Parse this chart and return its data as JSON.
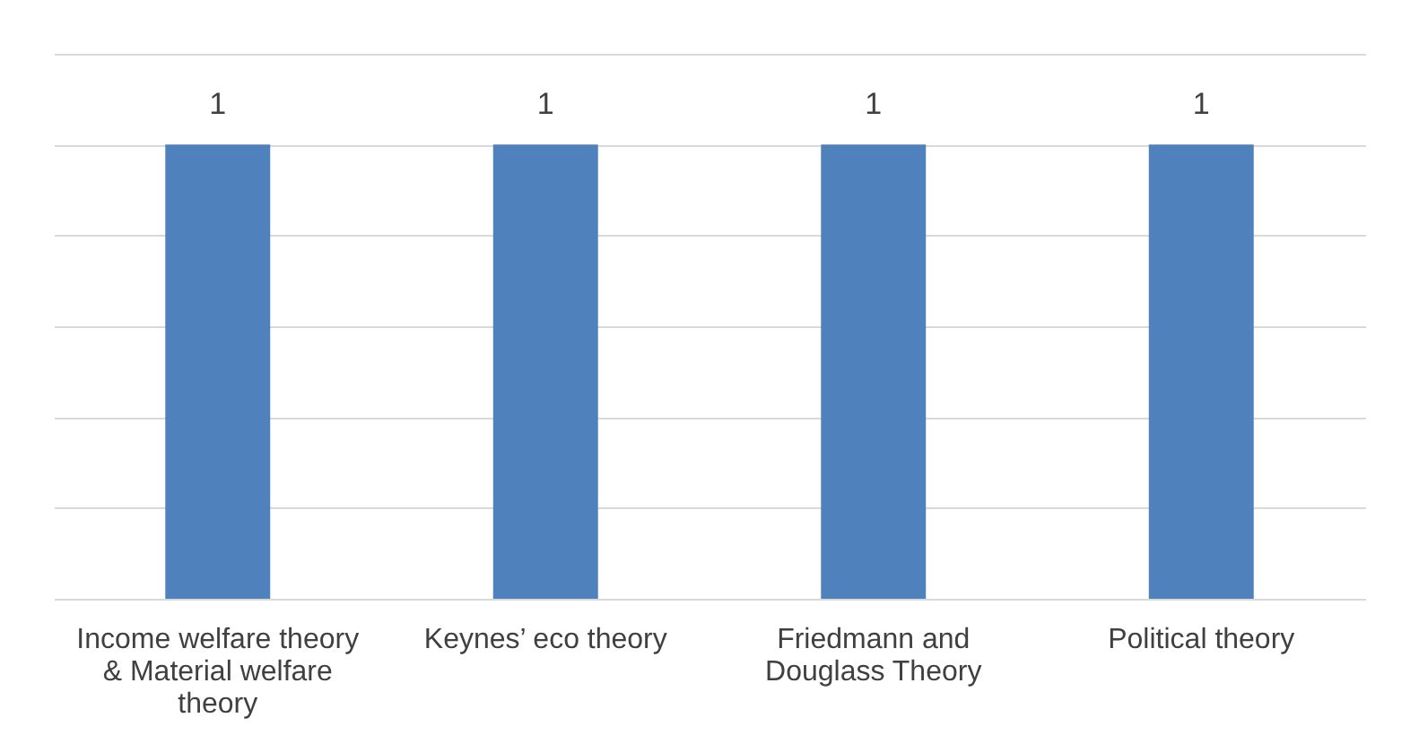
{
  "chart_data": {
    "type": "bar",
    "categories": [
      "Income welfare theory & Material welfare theory",
      "Keynes’ eco theory",
      "Friedmann and Douglass Theory",
      "Political theory"
    ],
    "values": [
      1,
      1,
      1,
      1
    ],
    "color": "#4f81bd",
    "ylim": [
      0,
      1.2
    ],
    "yticks": [
      {
        "value": 0,
        "label": null
      },
      {
        "value": 0.2,
        "label": null
      },
      {
        "value": 0.4,
        "label": null
      },
      {
        "value": 0.6,
        "label": null
      },
      {
        "value": 0.8,
        "label": null
      },
      {
        "value": 1.0,
        "label": null
      },
      {
        "value": 1.2,
        "label": null
      }
    ],
    "tick_labels": "x",
    "grid": "y",
    "data_labels": true
  }
}
